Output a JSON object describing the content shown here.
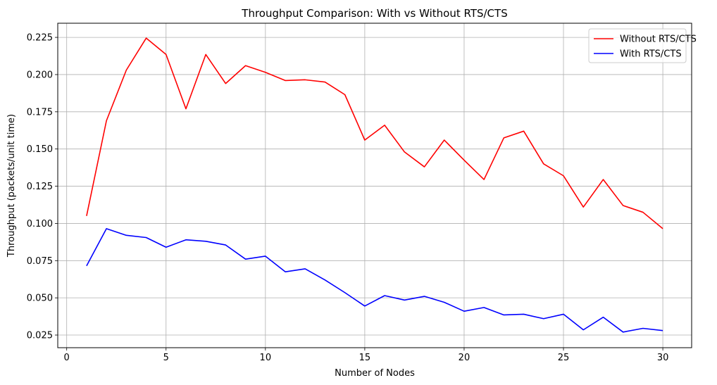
{
  "chart_data": {
    "type": "line",
    "title": "Throughput Comparison: With vs Without RTS/CTS",
    "xlabel": "Number of Nodes",
    "ylabel": "Throughput (packets/unit time)",
    "xlim": [
      -0.45,
      31.45
    ],
    "ylim": [
      0.0165,
      0.2345
    ],
    "xticks": [
      0,
      5,
      10,
      15,
      20,
      25,
      30
    ],
    "yticks": [
      0.025,
      0.05,
      0.075,
      0.1,
      0.125,
      0.15,
      0.175,
      0.2,
      0.225
    ],
    "xtick_labels": [
      "0",
      "5",
      "10",
      "15",
      "20",
      "25",
      "30"
    ],
    "ytick_labels": [
      "0.025",
      "0.050",
      "0.075",
      "0.100",
      "0.125",
      "0.150",
      "0.175",
      "0.200",
      "0.225"
    ],
    "grid": true,
    "legend_position": "top-right",
    "x": [
      1,
      2,
      3,
      4,
      5,
      6,
      7,
      8,
      9,
      10,
      11,
      12,
      13,
      14,
      15,
      16,
      17,
      18,
      19,
      20,
      21,
      22,
      23,
      24,
      25,
      26,
      27,
      28,
      29,
      30
    ],
    "series": [
      {
        "name": "Without RTS/CTS",
        "color": "#ff0000",
        "values": [
          0.105,
          0.169,
          0.203,
          0.2245,
          0.2135,
          0.177,
          0.2135,
          0.194,
          0.206,
          0.2015,
          0.196,
          0.1965,
          0.195,
          0.1865,
          0.156,
          0.166,
          0.148,
          0.138,
          0.156,
          0.1425,
          0.1295,
          0.1575,
          0.162,
          0.14,
          0.132,
          0.111,
          0.1295,
          0.112,
          0.1075,
          0.0965
        ]
      },
      {
        "name": "With RTS/CTS",
        "color": "#0000ff",
        "values": [
          0.0715,
          0.0965,
          0.092,
          0.0905,
          0.084,
          0.089,
          0.088,
          0.0855,
          0.076,
          0.078,
          0.0675,
          0.0695,
          0.062,
          0.0535,
          0.0445,
          0.0515,
          0.0485,
          0.051,
          0.047,
          0.041,
          0.0435,
          0.0385,
          0.039,
          0.036,
          0.039,
          0.0285,
          0.037,
          0.027,
          0.0295,
          0.028
        ]
      }
    ]
  }
}
